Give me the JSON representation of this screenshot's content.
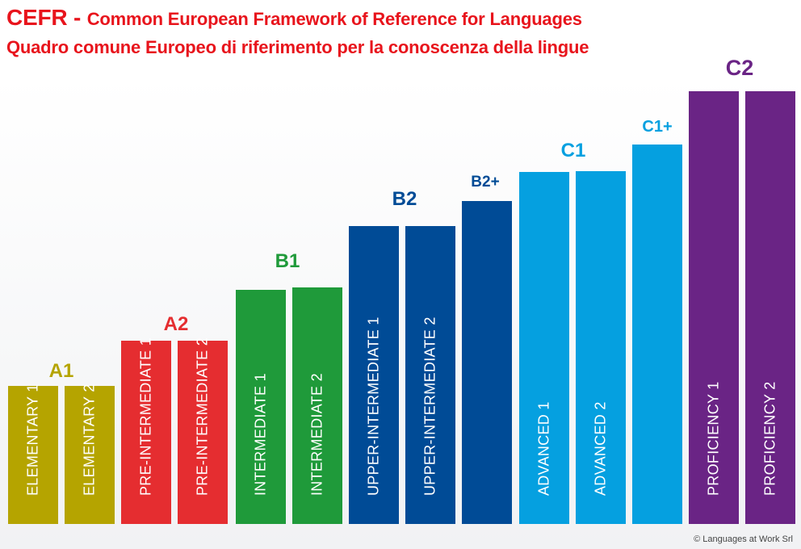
{
  "header": {
    "title_brand": "CEFR - ",
    "title_rest": "Common European Framework of Reference for Languages",
    "subtitle": "Quadro comune Europeo di riferimento per la conoscenza della lingue"
  },
  "colors": {
    "title": "#e8141c",
    "A1": "#b5a400",
    "A2": "#e52d30",
    "B1": "#1f9a3a",
    "B2": "#004b96",
    "C1": "#05a0e0",
    "C2": "#6a2485"
  },
  "levels": [
    {
      "code": "A1",
      "label": "A1"
    },
    {
      "code": "A2",
      "label": "A2"
    },
    {
      "code": "B1",
      "label": "B1"
    },
    {
      "code": "B2",
      "label": "B2"
    },
    {
      "code": "B2+",
      "label": "B2+"
    },
    {
      "code": "C1",
      "label": "C1"
    },
    {
      "code": "C1+",
      "label": "C1+"
    },
    {
      "code": "C2",
      "label": "C2"
    }
  ],
  "bars": [
    {
      "label": "ELEMENTARY 1",
      "level": "A1"
    },
    {
      "label": "ELEMENTARY 2",
      "level": "A1"
    },
    {
      "label": "PRE-INTERMEDIATE 1",
      "level": "A2"
    },
    {
      "label": "PRE-INTERMEDIATE 2",
      "level": "A2"
    },
    {
      "label": "INTERMEDIATE 1",
      "level": "B1"
    },
    {
      "label": "INTERMEDIATE 2",
      "level": "B1"
    },
    {
      "label": "UPPER-INTERMEDIATE 1",
      "level": "B2"
    },
    {
      "label": "UPPER-INTERMEDIATE 2",
      "level": "B2"
    },
    {
      "label": "",
      "level": "B2+"
    },
    {
      "label": "ADVANCED 1",
      "level": "C1"
    },
    {
      "label": "ADVANCED 2",
      "level": "C1"
    },
    {
      "label": "",
      "level": "C1+"
    },
    {
      "label": "PROFICIENCY 1",
      "level": "C2"
    },
    {
      "label": "PROFICIENCY 2",
      "level": "C2"
    }
  ],
  "footer": {
    "copyright": "© Languages at Work Srl"
  }
}
